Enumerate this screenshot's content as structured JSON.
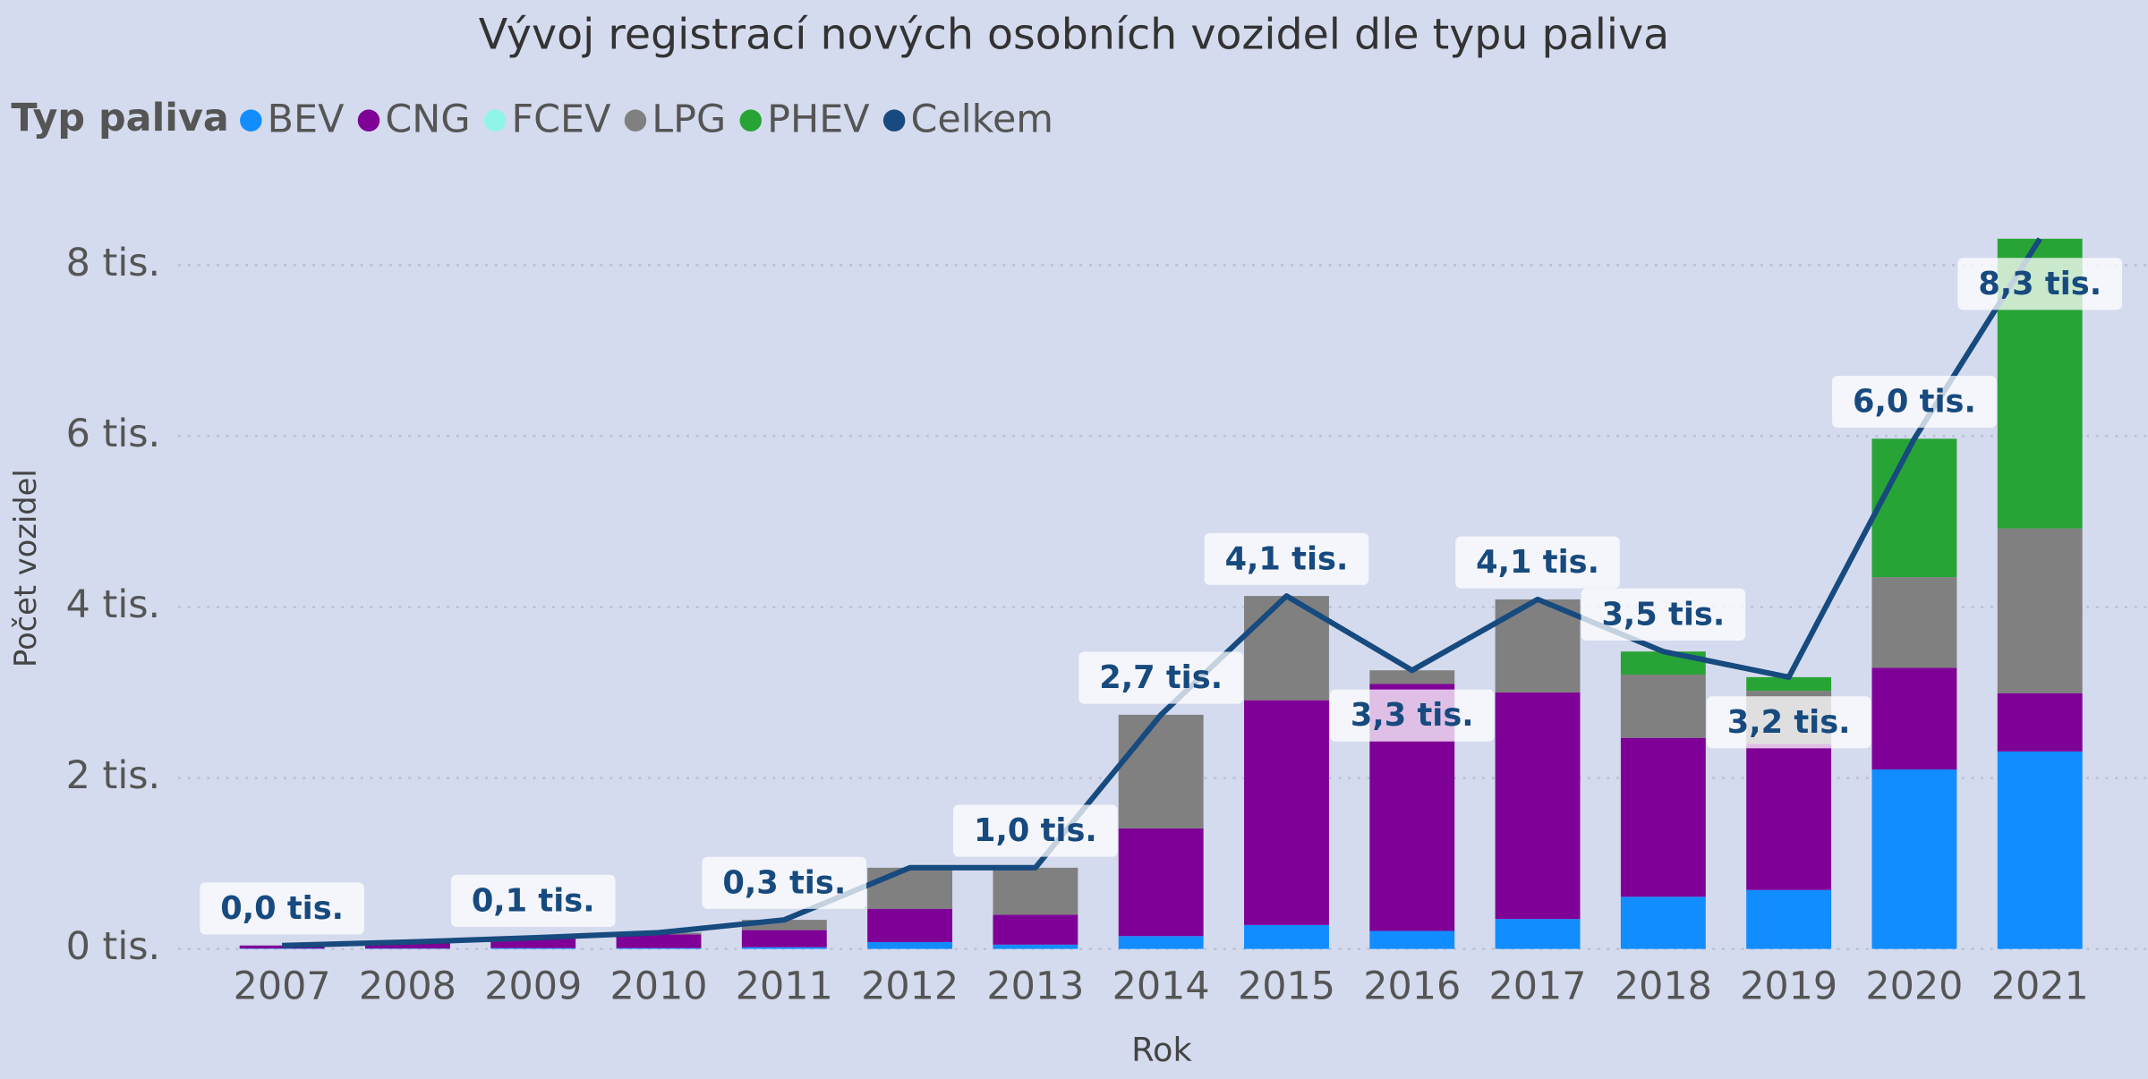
{
  "chart_data": {
    "type": "bar",
    "stacked": true,
    "title": "Vývoj registrací nových osobních vozidel dle typu paliva",
    "legend_title": "Typ paliva",
    "x_label": "Rok",
    "y_label": "Počet vozidel",
    "categories": [
      "2007",
      "2008",
      "2009",
      "2010",
      "2011",
      "2012",
      "2013",
      "2014",
      "2015",
      "2016",
      "2017",
      "2018",
      "2019",
      "2020",
      "2021"
    ],
    "series": [
      {
        "name": "BEV",
        "color": "#118dff",
        "values": [
          5,
          5,
          10,
          10,
          20,
          80,
          50,
          150,
          280,
          210,
          350,
          610,
          690,
          2100,
          2310
        ]
      },
      {
        "name": "CNG",
        "color": "#7f0096",
        "values": [
          35,
          70,
          110,
          160,
          200,
          390,
          350,
          1260,
          2630,
          2890,
          2650,
          1860,
          1710,
          1190,
          680
        ]
      },
      {
        "name": "FCEV",
        "color": "#8ff5e8",
        "values": [
          0,
          0,
          0,
          0,
          0,
          0,
          0,
          0,
          0,
          0,
          0,
          0,
          0,
          0,
          0
        ]
      },
      {
        "name": "LPG",
        "color": "#808080",
        "values": [
          0,
          5,
          10,
          20,
          120,
          480,
          550,
          1330,
          1220,
          160,
          1090,
          740,
          620,
          1060,
          1930
        ]
      },
      {
        "name": "PHEV",
        "color": "#28a436",
        "values": [
          0,
          0,
          0,
          0,
          0,
          0,
          0,
          0,
          0,
          0,
          0,
          270,
          160,
          1620,
          3390
        ]
      },
      {
        "name": "Celkem",
        "color": "#174a7e",
        "type": "line",
        "values": [
          40,
          80,
          130,
          190,
          340,
          950,
          950,
          2740,
          4130,
          3260,
          4090,
          3480,
          3180,
          5970,
          8310
        ],
        "value_labels": [
          "0,0 tis.",
          null,
          "0,1 tis.",
          null,
          "0,3 tis.",
          null,
          "1,0 tis.",
          "2,7 tis.",
          "4,1 tis.",
          "3,3 tis.",
          "4,1 tis.",
          "3,5 tis.",
          "3,2 tis.",
          "6,0 tis.",
          "8,3 tis."
        ]
      }
    ],
    "ylim": [
      0,
      8700
    ],
    "yticks": [
      {
        "value": 0,
        "label": "0 tis."
      },
      {
        "value": 2000,
        "label": "2 tis."
      },
      {
        "value": 4000,
        "label": "4 tis."
      },
      {
        "value": 6000,
        "label": "6 tis."
      },
      {
        "value": 8000,
        "label": "8 tis."
      }
    ],
    "grid": true
  }
}
